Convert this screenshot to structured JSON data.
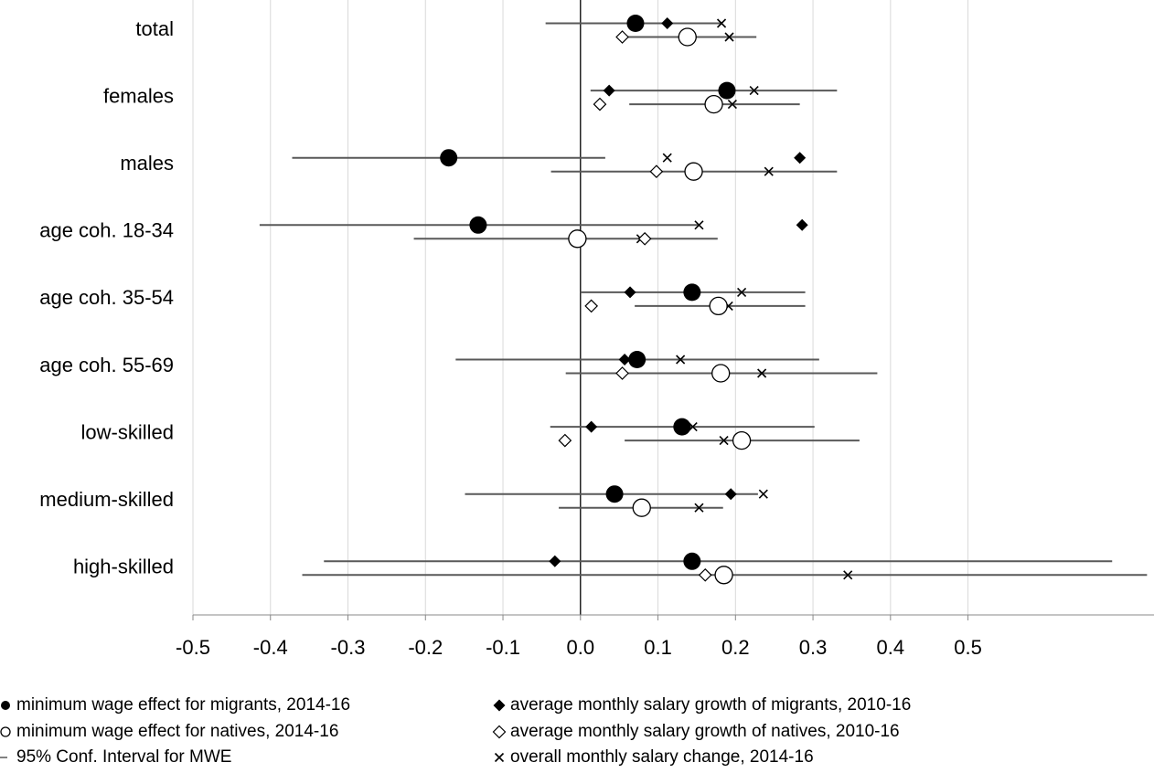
{
  "chart_data": {
    "type": "dot-interval",
    "categories": [
      "total",
      "females",
      "males",
      "age coh. 18-34",
      "age coh. 35-54",
      "age coh. 55-69",
      "low-skilled",
      "medium-skilled",
      "high-skilled"
    ],
    "xlim": [
      -0.5,
      0.74
    ],
    "xticks": [
      {
        "value": -0.5,
        "label": "-0.5"
      },
      {
        "value": -0.4,
        "label": "-0.4"
      },
      {
        "value": -0.3,
        "label": "-0.3"
      },
      {
        "value": -0.2,
        "label": "-0.2"
      },
      {
        "value": -0.1,
        "label": "-0.1"
      },
      {
        "value": 0,
        "label": "0.0"
      },
      {
        "value": 0.1,
        "label": "0.1"
      },
      {
        "value": 0.2,
        "label": "0.2"
      },
      {
        "value": 0.3,
        "label": "0.3"
      },
      {
        "value": 0.4,
        "label": "0.4"
      },
      {
        "value": 0.5,
        "label": "0.5"
      }
    ],
    "grid": true,
    "ci_name": "95% Conf. Interval for MWE",
    "series": [
      {
        "name": "minimum wage effect for migrants, 2014-16",
        "marker": "filled-circle",
        "row": 0,
        "color": "#000",
        "values": [
          0.071,
          0.189,
          -0.17,
          -0.132,
          0.144,
          0.073,
          0.131,
          0.044,
          0.144
        ],
        "ci_low": [
          -0.045,
          0.013,
          -0.372,
          -0.414,
          0.0,
          -0.161,
          -0.039,
          -0.149,
          -0.331
        ],
        "ci_high": [
          0.182,
          0.331,
          0.032,
          0.153,
          0.29,
          0.308,
          0.302,
          0.229,
          0.686
        ]
      },
      {
        "name": "minimum wage effect for natives, 2014-16",
        "marker": "hollow-circle",
        "row": 1,
        "color": "#000",
        "values": [
          0.138,
          0.172,
          0.146,
          -0.004,
          0.178,
          0.181,
          0.208,
          0.079,
          0.185
        ],
        "ci_low": [
          0.058,
          0.063,
          -0.038,
          -0.215,
          0.07,
          -0.019,
          0.057,
          -0.028,
          -0.359
        ],
        "ci_high": [
          0.227,
          0.283,
          0.331,
          0.177,
          0.29,
          0.383,
          0.36,
          0.184,
          0.731
        ]
      },
      {
        "name": "average monthly salary growth of migrants, 2010-16",
        "marker": "filled-diamond",
        "row": 0,
        "color": "#000",
        "values": [
          0.112,
          0.037,
          0.283,
          0.286,
          0.064,
          0.057,
          0.014,
          0.194,
          -0.033
        ]
      },
      {
        "name": "average monthly salary growth of natives, 2010-16",
        "marker": "hollow-diamond",
        "row": 1,
        "color": "#000",
        "values": [
          0.054,
          0.025,
          0.098,
          0.083,
          0.014,
          0.054,
          -0.02,
          0.077,
          0.161
        ]
      },
      {
        "name": "overall monthly salary change, 2014-16",
        "marker": "x",
        "row": 0,
        "color": "#000",
        "values": [
          0.182,
          0.224,
          0.112,
          0.153,
          0.208,
          0.129,
          0.145,
          0.236,
          0.143
        ],
        "values_natives": [
          0.192,
          0.196,
          0.243,
          0.078,
          0.191,
          0.234,
          0.185,
          0.153,
          0.345
        ]
      }
    ]
  }
}
